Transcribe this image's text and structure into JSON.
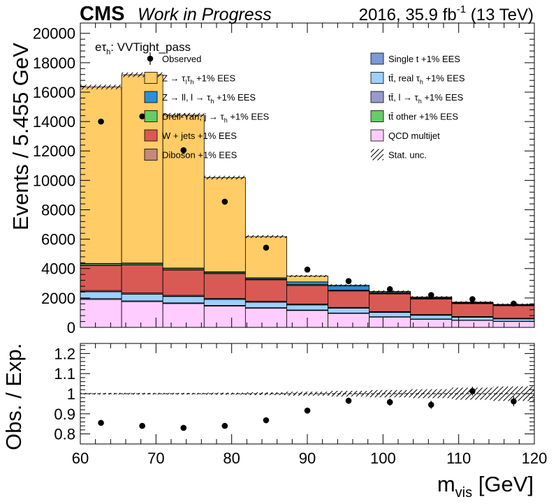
{
  "header": {
    "experiment": "CMS",
    "status": "Work in Progress",
    "lumi_pre": "2016, 35.9 fb",
    "lumi_sup": "-1",
    "lumi_post": " (13 TeV)"
  },
  "chart_data": [
    {
      "type": "bar",
      "stacked": true,
      "channel": {
        "base": "eτ",
        "sub": "h",
        "rest": ": VVTight_pass"
      },
      "ylabel": "Events / 5.455 GeV",
      "xlim": [
        60,
        120
      ],
      "ylim": [
        0,
        20700
      ],
      "yticks": [
        0,
        2000,
        4000,
        6000,
        8000,
        10000,
        12000,
        14000,
        16000,
        18000,
        20000
      ],
      "bin_edges": [
        60,
        65.455,
        70.909,
        76.364,
        81.818,
        87.273,
        92.727,
        98.182,
        103.636,
        109.091,
        114.545,
        120
      ],
      "series": [
        {
          "key": "qcd",
          "color": "#ffccff",
          "values": [
            1900,
            1750,
            1620,
            1450,
            1300,
            1150,
            950,
            700,
            550,
            470,
            400
          ]
        },
        {
          "key": "ttl",
          "color": "#9999cc",
          "values": [
            60,
            55,
            50,
            45,
            40,
            35,
            30,
            25,
            22,
            20,
            18
          ]
        },
        {
          "key": "ttreal",
          "color": "#9bd0ff",
          "values": [
            460,
            450,
            430,
            400,
            370,
            340,
            320,
            290,
            250,
            200,
            160
          ]
        },
        {
          "key": "singlet",
          "color": "#7b9ad6",
          "values": [
            20,
            20,
            20,
            20,
            20,
            20,
            20,
            20,
            20,
            20,
            20
          ]
        },
        {
          "key": "diboson",
          "color": "#c48a78",
          "values": [
            70,
            70,
            65,
            60,
            55,
            50,
            45,
            40,
            35,
            30,
            28
          ]
        },
        {
          "key": "wjets",
          "color": "#d95a55",
          "values": [
            1700,
            1900,
            1720,
            1680,
            1450,
            1250,
            1110,
            1200,
            1050,
            870,
            850
          ]
        },
        {
          "key": "tt_other",
          "color": "#66cc66",
          "values": [
            20,
            20,
            20,
            20,
            20,
            20,
            20,
            20,
            20,
            20,
            20
          ]
        },
        {
          "key": "dy_jtau",
          "color": "#66cc66",
          "values": [
            100,
            90,
            80,
            70,
            60,
            50,
            40,
            35,
            30,
            25,
            20
          ]
        },
        {
          "key": "zll",
          "color": "#2b8fd1",
          "values": [
            20,
            25,
            30,
            40,
            60,
            180,
            280,
            60,
            40,
            30,
            20
          ]
        },
        {
          "key": "ztt",
          "color": "#ffcc66",
          "values": [
            12000,
            12800,
            10400,
            6400,
            2800,
            400,
            50,
            60,
            50,
            35,
            30
          ]
        }
      ],
      "observed": {
        "x": [
          62.73,
          68.18,
          73.64,
          79.09,
          84.55,
          90.0,
          95.45,
          100.91,
          106.36,
          111.82,
          117.27
        ],
        "y": [
          14000,
          14350,
          12050,
          8550,
          5420,
          3930,
          3150,
          2600,
          2200,
          1920,
          1620
        ]
      },
      "legend": [
        {
          "text": "Observed",
          "type": "marker"
        },
        {
          "text": "Z → τ",
          "sub": "l",
          "mid": "τ",
          "sub2": "h",
          "tail": " +1% EES",
          "color": "#ffcc66"
        },
        {
          "text": "Z → ll, l → τ",
          "sub": "h",
          "tail": " +1% EES",
          "color": "#2b8fd1"
        },
        {
          "text": "Drell-Yan, j → τ",
          "sub": "h",
          "tail": " +1% EES",
          "color": "#66cc66"
        },
        {
          "text": "W + jets +1% EES",
          "color": "#d95a55"
        },
        {
          "text": "Diboson +1% EES",
          "color": "#c48a78"
        },
        {
          "text": "Single t +1% EES",
          "color": "#7b9ad6"
        },
        {
          "text": "tt̄, real τ",
          "sub": "h",
          "tail": " +1% EES",
          "color": "#9bd0ff"
        },
        {
          "text": "tt̄, l → τ",
          "sub": "h",
          "tail": " +1% EES",
          "color": "#9999cc"
        },
        {
          "text": "tt̄ other +1% EES",
          "color": "#66cc66"
        },
        {
          "text": "QCD multijet",
          "color": "#ffccff"
        },
        {
          "text": "Stat. unc.",
          "type": "hatch"
        }
      ]
    },
    {
      "type": "scatter",
      "ylabel": "Obs. / Exp.",
      "xlabel_base": "m",
      "xlabel_sub": "vis",
      "xlabel_tail": " [GeV]",
      "xlim": [
        60,
        120
      ],
      "ylim": [
        0.75,
        1.25
      ],
      "yticks": [
        0.8,
        0.9,
        1,
        1.1,
        1.2
      ],
      "xticks": [
        60,
        70,
        80,
        90,
        100,
        110,
        120
      ],
      "x": [
        62.73,
        68.18,
        73.64,
        79.09,
        84.55,
        90.0,
        95.45,
        100.91,
        106.36,
        111.82,
        117.27
      ],
      "y": [
        0.855,
        0.84,
        0.83,
        0.84,
        0.868,
        0.916,
        0.965,
        0.958,
        0.945,
        1.013,
        0.962
      ],
      "yerr": [
        0.007,
        0.007,
        0.008,
        0.009,
        0.011,
        0.013,
        0.016,
        0.018,
        0.02,
        0.022,
        0.024
      ],
      "stat_unc": [
        0.004,
        0.004,
        0.004,
        0.005,
        0.007,
        0.01,
        0.014,
        0.018,
        0.022,
        0.03,
        0.036
      ]
    }
  ]
}
